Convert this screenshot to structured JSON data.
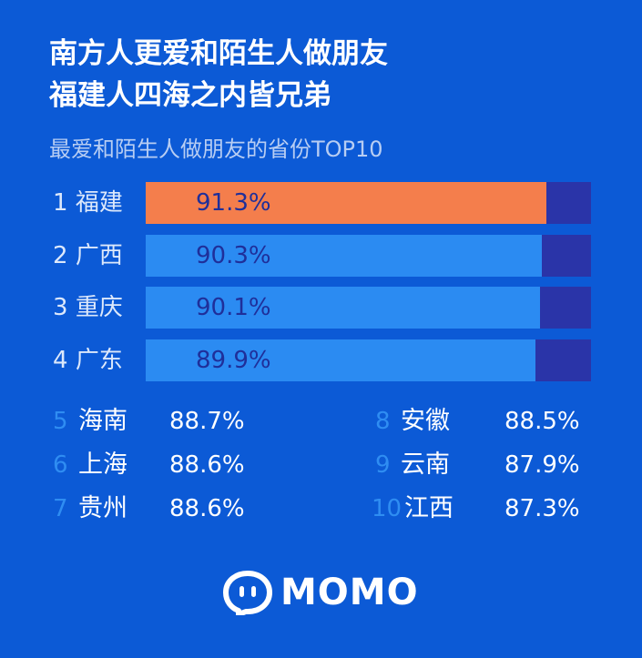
{
  "headline": {
    "line1": "南方人更爱和陌生人做朋友",
    "line2": "福建人四海之内皆兄弟"
  },
  "chart_data": {
    "type": "bar",
    "title": "最爱和陌生人做朋友的省份TOP10",
    "unit": "%",
    "categories": [
      "福建",
      "广西",
      "重庆",
      "广东",
      "海南",
      "上海",
      "贵州",
      "安徽",
      "云南",
      "江西"
    ],
    "ranks": [
      "1",
      "2",
      "3",
      "4",
      "5",
      "6",
      "7",
      "8",
      "9",
      "10"
    ],
    "values": [
      91.3,
      90.3,
      90.1,
      89.9,
      88.7,
      88.6,
      88.6,
      88.5,
      87.9,
      87.3
    ],
    "labels": [
      "91.3%",
      "90.3%",
      "90.1%",
      "89.9%",
      "88.7%",
      "88.6%",
      "88.6%",
      "88.5%",
      "87.9%",
      "87.3%"
    ],
    "top_bars": [
      {
        "rank": "1",
        "name": "福建",
        "value": 91.3,
        "label": "91.3%",
        "fraction_shown": 0.9
      },
      {
        "rank": "2",
        "name": "广西",
        "value": 90.3,
        "label": "90.3%",
        "fraction_shown": 0.89
      },
      {
        "rank": "3",
        "name": "重庆",
        "value": 90.1,
        "label": "90.1%",
        "fraction_shown": 0.885
      },
      {
        "rank": "4",
        "name": "广东",
        "value": 89.9,
        "label": "89.9%",
        "fraction_shown": 0.875
      }
    ]
  },
  "rest": {
    "left": [
      {
        "rank": "5",
        "name": "海南",
        "label": "88.7%"
      },
      {
        "rank": "6",
        "name": "上海",
        "label": "88.6%"
      },
      {
        "rank": "7",
        "name": "贵州",
        "label": "88.6%"
      }
    ],
    "right": [
      {
        "rank": "8",
        "name": "安徽",
        "label": "88.5%"
      },
      {
        "rank": "9",
        "name": "云南",
        "label": "87.9%"
      },
      {
        "rank": "10",
        "name": "江西",
        "label": "87.3%"
      }
    ]
  },
  "brand": {
    "name": "MOMO"
  },
  "colors": {
    "background": "#0c5ad6",
    "highlight_bar": "#f47e4c",
    "bar": "#2b8bf2",
    "bar_track": "#2a34a8",
    "value_text": "#1f2f9a",
    "rank_accent": "#2f8df2"
  }
}
